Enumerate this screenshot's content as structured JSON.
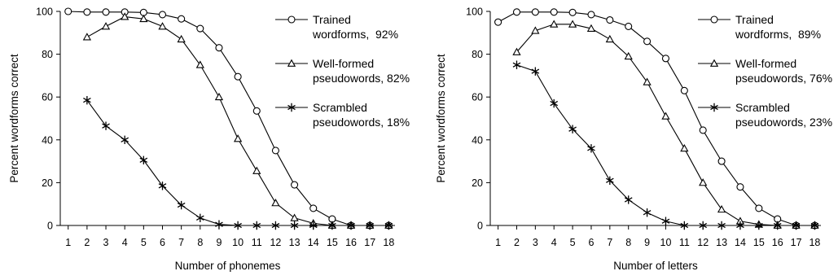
{
  "chart_data": [
    {
      "type": "line",
      "xlabel": "Number of phonemes",
      "ylabel": "Percent wordforms correct",
      "xlim": [
        1,
        18
      ],
      "ylim": [
        0,
        100
      ],
      "xticks": [
        "1",
        "2",
        "3",
        "4",
        "5",
        "6",
        "7",
        "8",
        "9",
        "10",
        "11",
        "12",
        "13",
        "14",
        "15",
        "16",
        "17",
        "18"
      ],
      "yticks": [
        "0",
        "20",
        "40",
        "60",
        "80",
        "100"
      ],
      "grid": false,
      "legend": "right",
      "series": [
        {
          "name": "Trained wordforms, 92%",
          "label_lines": [
            "Trained",
            "wordforms,  92%"
          ],
          "marker": "circle",
          "x": [
            1,
            2,
            3,
            4,
            5,
            6,
            7,
            8,
            9,
            10,
            11,
            12,
            13,
            14,
            15,
            16,
            17,
            18
          ],
          "y": [
            100,
            99.7,
            99.7,
            99.7,
            99.5,
            98.5,
            96.5,
            92,
            83,
            69.5,
            53.5,
            35,
            19,
            8,
            3,
            0,
            0,
            0
          ]
        },
        {
          "name": "Well-formed pseudowords, 82%",
          "label_lines": [
            "Well-formed",
            "pseudowords, 82%"
          ],
          "marker": "triangle",
          "x": [
            2,
            3,
            4,
            5,
            6,
            7,
            8,
            9,
            10,
            11,
            12,
            13,
            14,
            15,
            16,
            17,
            18
          ],
          "y": [
            88,
            93,
            97.5,
            96.5,
            93,
            87,
            75,
            60,
            40.5,
            25.5,
            10.5,
            3.5,
            1,
            0,
            0,
            0,
            0
          ]
        },
        {
          "name": "Scrambled pseudowords, 18%",
          "label_lines": [
            "Scrambled",
            "pseudowords, 18%"
          ],
          "marker": "asterisk",
          "x": [
            2,
            3,
            4,
            5,
            6,
            7,
            8,
            9,
            10,
            11,
            12,
            13,
            14,
            15,
            16,
            17,
            18
          ],
          "y": [
            58.5,
            46.5,
            40,
            30.5,
            18.5,
            9.5,
            3.5,
            0.5,
            0,
            0,
            0,
            0,
            0,
            0,
            0,
            0,
            0
          ]
        }
      ]
    },
    {
      "type": "line",
      "xlabel": "Number of letters",
      "ylabel": "Percent wordforms correct",
      "xlim": [
        1,
        18
      ],
      "ylim": [
        0,
        100
      ],
      "xticks": [
        "1",
        "2",
        "3",
        "4",
        "5",
        "6",
        "7",
        "8",
        "9",
        "10",
        "11",
        "12",
        "13",
        "14",
        "15",
        "16",
        "17",
        "18"
      ],
      "yticks": [
        "0",
        "20",
        "40",
        "60",
        "80",
        "100"
      ],
      "grid": false,
      "legend": "right",
      "series": [
        {
          "name": "Trained wordforms, 89%",
          "label_lines": [
            "Trained",
            "wordforms,  89%"
          ],
          "marker": "circle",
          "x": [
            1,
            2,
            3,
            4,
            5,
            6,
            7,
            8,
            9,
            10,
            11,
            12,
            13,
            14,
            15,
            16,
            17,
            18
          ],
          "y": [
            95,
            99.7,
            99.7,
            99.7,
            99.5,
            98.5,
            96,
            93,
            86,
            78,
            63,
            44.5,
            30,
            18,
            8,
            3,
            0,
            0
          ]
        },
        {
          "name": "Well-formed pseudowords, 76%",
          "label_lines": [
            "Well-formed",
            "pseudowords, 76%"
          ],
          "marker": "triangle",
          "x": [
            2,
            3,
            4,
            5,
            6,
            7,
            8,
            9,
            10,
            11,
            12,
            13,
            14,
            15,
            16,
            17,
            18
          ],
          "y": [
            81,
            91,
            94,
            94,
            92,
            87,
            79,
            67,
            51,
            36,
            20,
            7.5,
            2,
            0.5,
            0,
            0,
            0
          ]
        },
        {
          "name": "Scrambled pseudowords, 23%",
          "label_lines": [
            "Scrambled",
            "pseudowords, 23%"
          ],
          "marker": "asterisk",
          "x": [
            2,
            3,
            4,
            5,
            6,
            7,
            8,
            9,
            10,
            11,
            12,
            13,
            14,
            15,
            16,
            17,
            18
          ],
          "y": [
            75,
            72,
            57,
            45,
            36,
            21,
            12,
            6,
            2,
            0,
            0,
            0,
            0,
            0,
            0,
            0,
            0
          ]
        }
      ]
    }
  ]
}
